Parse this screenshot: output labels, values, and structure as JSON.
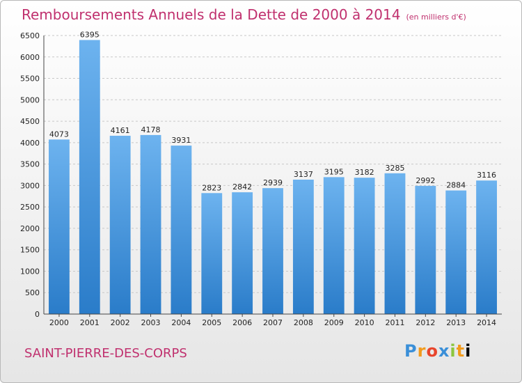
{
  "header": {
    "title": "Remboursements Annuels de la Dette de 2000 à 2014",
    "unit": "(en milliers d'€)"
  },
  "footer": {
    "city": "SAINT-PIERRE-DES-CORPS",
    "logo_letters": [
      "P",
      "r",
      "o",
      "x",
      "i",
      "t",
      "i"
    ]
  },
  "chart_data": {
    "type": "bar",
    "categories": [
      "2000",
      "2001",
      "2002",
      "2003",
      "2004",
      "2005",
      "2006",
      "2007",
      "2008",
      "2009",
      "2010",
      "2011",
      "2012",
      "2013",
      "2014"
    ],
    "values": [
      4073,
      6395,
      4161,
      4178,
      3931,
      2823,
      2842,
      2939,
      3137,
      3195,
      3182,
      3285,
      2992,
      2884,
      3116
    ],
    "ylim": [
      0,
      6500
    ],
    "yticks": [
      0,
      500,
      1000,
      1500,
      2000,
      2500,
      3000,
      3500,
      4000,
      4500,
      5000,
      5500,
      6000,
      6500
    ],
    "grid": true,
    "colors": {
      "bar_light": "#6db3ef",
      "bar_dark": "#2a7cc9",
      "grid": "#c8c8c8"
    }
  }
}
